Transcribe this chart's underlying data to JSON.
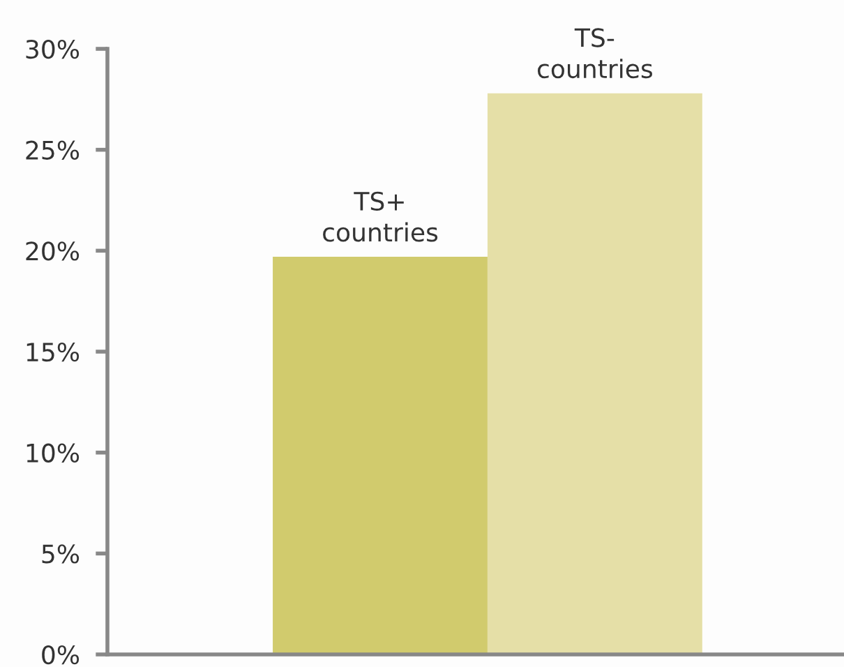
{
  "chart_data": {
    "type": "bar",
    "categories": [
      "TS+\ncountries",
      "TS-\ncountries"
    ],
    "values": [
      19.7,
      27.8
    ],
    "colors": [
      "#d1cb6d",
      "#e5dfa7"
    ],
    "ylim": [
      0,
      30
    ],
    "yticks": [
      {
        "value": 0,
        "label": "0%"
      },
      {
        "value": 5,
        "label": "5%"
      },
      {
        "value": 10,
        "label": "10%"
      },
      {
        "value": 15,
        "label": "15%"
      },
      {
        "value": 20,
        "label": "20%"
      },
      {
        "value": 25,
        "label": "25%"
      },
      {
        "value": 30,
        "label": "30%"
      }
    ],
    "grid": false,
    "legend": false
  }
}
